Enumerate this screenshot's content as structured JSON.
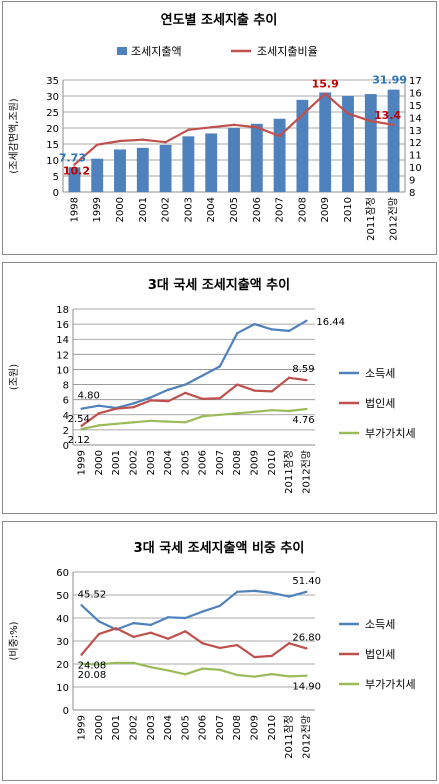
{
  "chart_data": [
    {
      "type": "bar+line",
      "title": "연도별 조세지출 추이",
      "categories": [
        "1998",
        "1999",
        "2000",
        "2001",
        "2002",
        "2003",
        "2004",
        "2005",
        "2006",
        "2007",
        "2008",
        "2009",
        "2010",
        "2011잠정",
        "2012전망"
      ],
      "series": [
        {
          "name": "조세지출액",
          "type": "bar",
          "axis": "left",
          "color": "#4f81bd",
          "values": [
            7.73,
            10.4,
            13.3,
            13.8,
            14.7,
            17.4,
            18.3,
            20.0,
            21.3,
            22.9,
            28.8,
            31.1,
            30.0,
            30.6,
            31.99
          ]
        },
        {
          "name": "조세지출비율",
          "type": "line",
          "axis": "right",
          "color": "#c0504d",
          "values": [
            10.2,
            11.8,
            12.1,
            12.2,
            12.0,
            13.0,
            13.2,
            13.4,
            13.2,
            12.5,
            14.2,
            15.9,
            14.3,
            13.7,
            13.4
          ]
        }
      ],
      "data_labels": [
        {
          "series": 0,
          "index": 0,
          "text": "7.73"
        },
        {
          "series": 0,
          "index": 14,
          "text": "31.99"
        },
        {
          "series": 1,
          "index": 0,
          "text": "10.2"
        },
        {
          "series": 1,
          "index": 11,
          "text": "15.9"
        },
        {
          "series": 1,
          "index": 14,
          "text": "13.4"
        }
      ],
      "ylabel": "(조세감면액,조원)",
      "ylim": [
        0,
        35
      ],
      "yticks": [
        0,
        5,
        10,
        15,
        20,
        25,
        30,
        35
      ],
      "y2lim": [
        8,
        17
      ],
      "y2ticks": [
        8,
        9,
        10,
        11,
        12,
        13,
        14,
        15,
        16,
        17
      ],
      "grid": true,
      "legend": "top"
    },
    {
      "type": "line",
      "title": "3대 국세 조세지출액 추이",
      "categories": [
        "1999",
        "2000",
        "2001",
        "2002",
        "2003",
        "2004",
        "2005",
        "2006",
        "2007",
        "2008",
        "2009",
        "2010",
        "2011잠정",
        "2012전망"
      ],
      "series": [
        {
          "name": "소득세",
          "color": "#4f81bd",
          "values": [
            4.8,
            5.2,
            4.9,
            5.5,
            6.3,
            7.3,
            8.0,
            9.2,
            10.4,
            14.8,
            16.0,
            15.3,
            15.1,
            16.44
          ]
        },
        {
          "name": "법인세",
          "color": "#c0504d",
          "values": [
            2.54,
            4.2,
            4.8,
            5.0,
            5.9,
            5.8,
            6.9,
            6.1,
            6.2,
            8.0,
            7.2,
            7.1,
            8.9,
            8.59
          ]
        },
        {
          "name": "부가가치세",
          "color": "#9bbb59",
          "values": [
            2.12,
            2.6,
            2.8,
            3.0,
            3.2,
            3.1,
            3.0,
            3.8,
            4.0,
            4.2,
            4.4,
            4.6,
            4.5,
            4.76
          ]
        }
      ],
      "data_labels": [
        {
          "series": 0,
          "index": 0,
          "text": "4.80"
        },
        {
          "series": 0,
          "index": 13,
          "text": "16.44"
        },
        {
          "series": 1,
          "index": 0,
          "text": "2.54"
        },
        {
          "series": 1,
          "index": 13,
          "text": "8.59"
        },
        {
          "series": 2,
          "index": 0,
          "text": "2.12"
        },
        {
          "series": 2,
          "index": 13,
          "text": "4.76"
        }
      ],
      "ylabel": "(조원)",
      "ylim": [
        0,
        18
      ],
      "yticks": [
        0,
        2,
        4,
        6,
        8,
        10,
        12,
        14,
        16,
        18
      ],
      "grid": true,
      "legend": "right"
    },
    {
      "type": "line",
      "title": "3대 국세 조세지출액 비중 추이",
      "categories": [
        "1999",
        "2000",
        "2001",
        "2002",
        "2003",
        "2004",
        "2005",
        "2006",
        "2007",
        "2008",
        "2009",
        "2010",
        "2011잠정",
        "2012전망"
      ],
      "series": [
        {
          "name": "소득세",
          "color": "#4f81bd",
          "values": [
            45.52,
            38.5,
            35.0,
            37.8,
            37.0,
            40.3,
            40.0,
            42.8,
            45.3,
            51.4,
            51.8,
            50.9,
            49.3,
            51.4
          ]
        },
        {
          "name": "법인세",
          "color": "#c0504d",
          "values": [
            24.08,
            33.0,
            35.5,
            31.8,
            33.6,
            31.0,
            34.2,
            29.0,
            27.0,
            28.2,
            23.0,
            23.5,
            29.0,
            26.8
          ]
        },
        {
          "name": "부가가치세",
          "color": "#9bbb59",
          "values": [
            20.08,
            19.8,
            20.5,
            20.5,
            18.6,
            17.2,
            15.5,
            18.0,
            17.5,
            15.2,
            14.5,
            15.6,
            14.6,
            14.9
          ]
        }
      ],
      "data_labels": [
        {
          "series": 0,
          "index": 0,
          "text": "45.52"
        },
        {
          "series": 0,
          "index": 13,
          "text": "51.40"
        },
        {
          "series": 1,
          "index": 0,
          "text": "24.08"
        },
        {
          "series": 1,
          "index": 13,
          "text": "26.80"
        },
        {
          "series": 2,
          "index": 0,
          "text": "20.08"
        },
        {
          "series": 2,
          "index": 13,
          "text": "14.90"
        }
      ],
      "ylabel": "(비중:%)",
      "ylim": [
        0,
        60
      ],
      "yticks": [
        0,
        10,
        20,
        30,
        40,
        50,
        60
      ],
      "grid": true,
      "legend": "right"
    }
  ]
}
